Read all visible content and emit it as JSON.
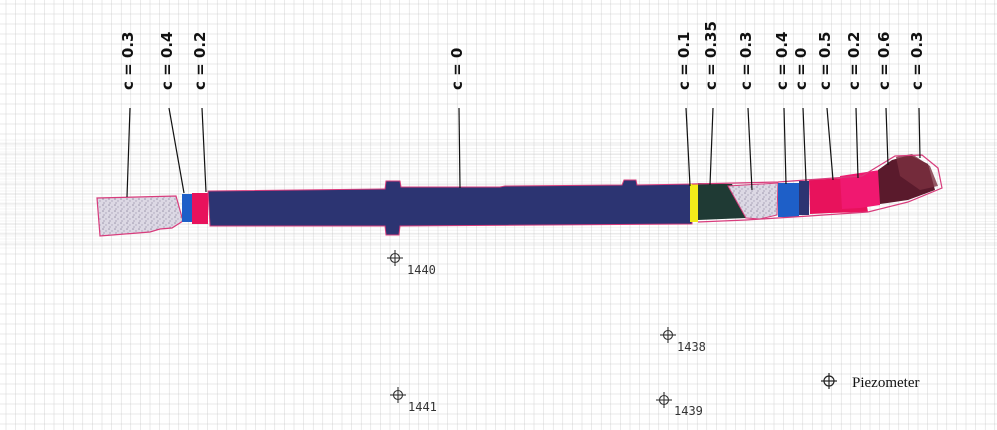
{
  "labels": [
    {
      "id": "z1",
      "text": "c = 0.3"
    },
    {
      "id": "z2",
      "text": "c = 0.4"
    },
    {
      "id": "z3",
      "text": "c = 0.2"
    },
    {
      "id": "z4",
      "text": "c = 0"
    },
    {
      "id": "z5",
      "text": "c = 0.1"
    },
    {
      "id": "z6",
      "text": "c = 0.35"
    },
    {
      "id": "z7",
      "text": "c = 0.3"
    },
    {
      "id": "z8",
      "text": "c = 0.4"
    },
    {
      "id": "z9",
      "text": "c = 0"
    },
    {
      "id": "z10",
      "text": "c = 0.5"
    },
    {
      "id": "z11",
      "text": "c = 0.2"
    },
    {
      "id": "z12",
      "text": "c = 0.6"
    },
    {
      "id": "z13",
      "text": "c = 0.3"
    }
  ],
  "piezometers": [
    {
      "id": "p1440",
      "label": "1440"
    },
    {
      "id": "p1441",
      "label": "1441"
    },
    {
      "id": "p1438",
      "label": "1438"
    },
    {
      "id": "p1439",
      "label": "1439"
    }
  ],
  "legend": {
    "label": "Piezometer",
    "icon": "piezometer-icon"
  },
  "colors": {
    "main_body": "#2c3472",
    "outline": "#d83c7c",
    "speckle_fill": "#d8d4e0",
    "blue_zone": "#1e5fc8",
    "magenta_zone": "#e8125c",
    "yellow_zone": "#f2ec1a",
    "dark_green_zone": "#1f3a34",
    "pink_zone": "#f01870",
    "dark_maroon_zone": "#5a1a2c",
    "grid": "#b4b4b4"
  }
}
